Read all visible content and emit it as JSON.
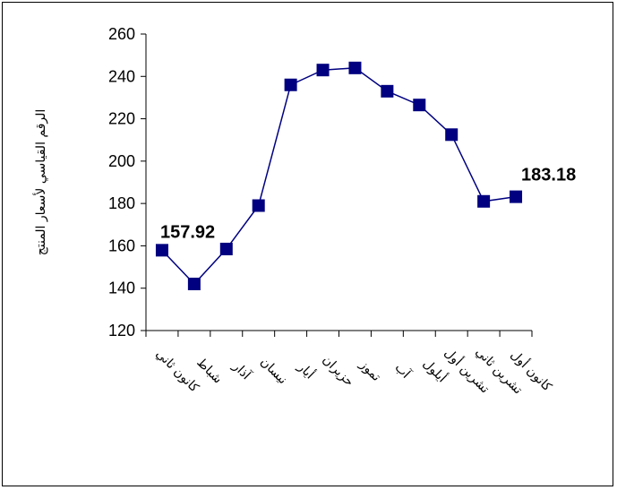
{
  "chart_data": {
    "type": "line",
    "ylabel": "الرقم القياسي لأسعار المنتج",
    "xlabel": "",
    "title": "",
    "ylim": [
      120,
      260
    ],
    "yticks": [
      120,
      140,
      160,
      180,
      200,
      220,
      240,
      260
    ],
    "grid": false,
    "legend": "none",
    "categories": [
      "كانون ثاني",
      "شباط",
      "آذار",
      "نيسان",
      "أيار",
      "حزيران",
      "تموز",
      "آب",
      "أيلول",
      "تشرين أول",
      "تشرين ثاني",
      "كانون أول"
    ],
    "series": [
      {
        "values": [
          157.92,
          142,
          158.5,
          179,
          236,
          243,
          244,
          233,
          226.5,
          212.5,
          181,
          183.18
        ],
        "color": "#000080",
        "marker": "square"
      }
    ],
    "annotations": [
      {
        "index": 0,
        "text": "157.92"
      },
      {
        "index": 11,
        "text": "183.18"
      }
    ]
  }
}
